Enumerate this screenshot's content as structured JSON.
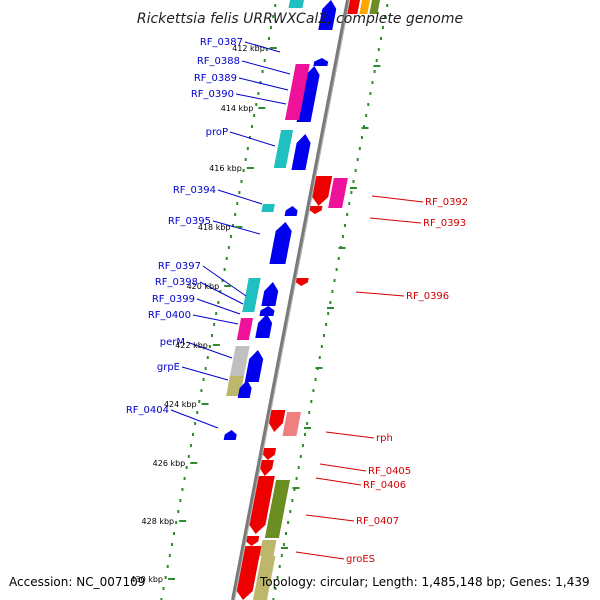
{
  "title": "Rickettsia felis URRWXCal2, complete genome",
  "accession": "Accession: NC_007109",
  "topology": "Topology: circular; Length: 1,485,148 bp; Genes: 1,439",
  "colors": {
    "forward_label": "#0000cc",
    "reverse_label": "#d40000",
    "backbone": "#7a7a7a",
    "ruler_tick": "#2e8b2e",
    "forward_gene": "#0000ee",
    "reverse_gene": "#ee0000",
    "hypothetical_magenta": "#ee1199",
    "olive": "#6b8e23",
    "khaki": "#bdb76b",
    "cyan": "#20c0c0",
    "pink": "#f08080"
  },
  "kbp_labels": [
    "412 kbp",
    "414 kbp",
    "416 kbp",
    "418 kbp",
    "420 kbp",
    "422 kbp",
    "424 kbp",
    "426 kbp",
    "428 kbp",
    "430 kbp"
  ],
  "forward_labels": [
    "RF_0387",
    "RF_0388",
    "RF_0389",
    "RF_0390",
    "proP",
    "RF_0394",
    "RF_0395",
    "RF_0397",
    "RF_0398",
    "RF_0399",
    "RF_0400",
    "perM",
    "grpE",
    "RF_0404"
  ],
  "reverse_labels": [
    "RF_0392",
    "RF_0393",
    "RF_0396",
    "rph",
    "RF_0405",
    "RF_0406",
    "RF_0407",
    "groES"
  ]
}
